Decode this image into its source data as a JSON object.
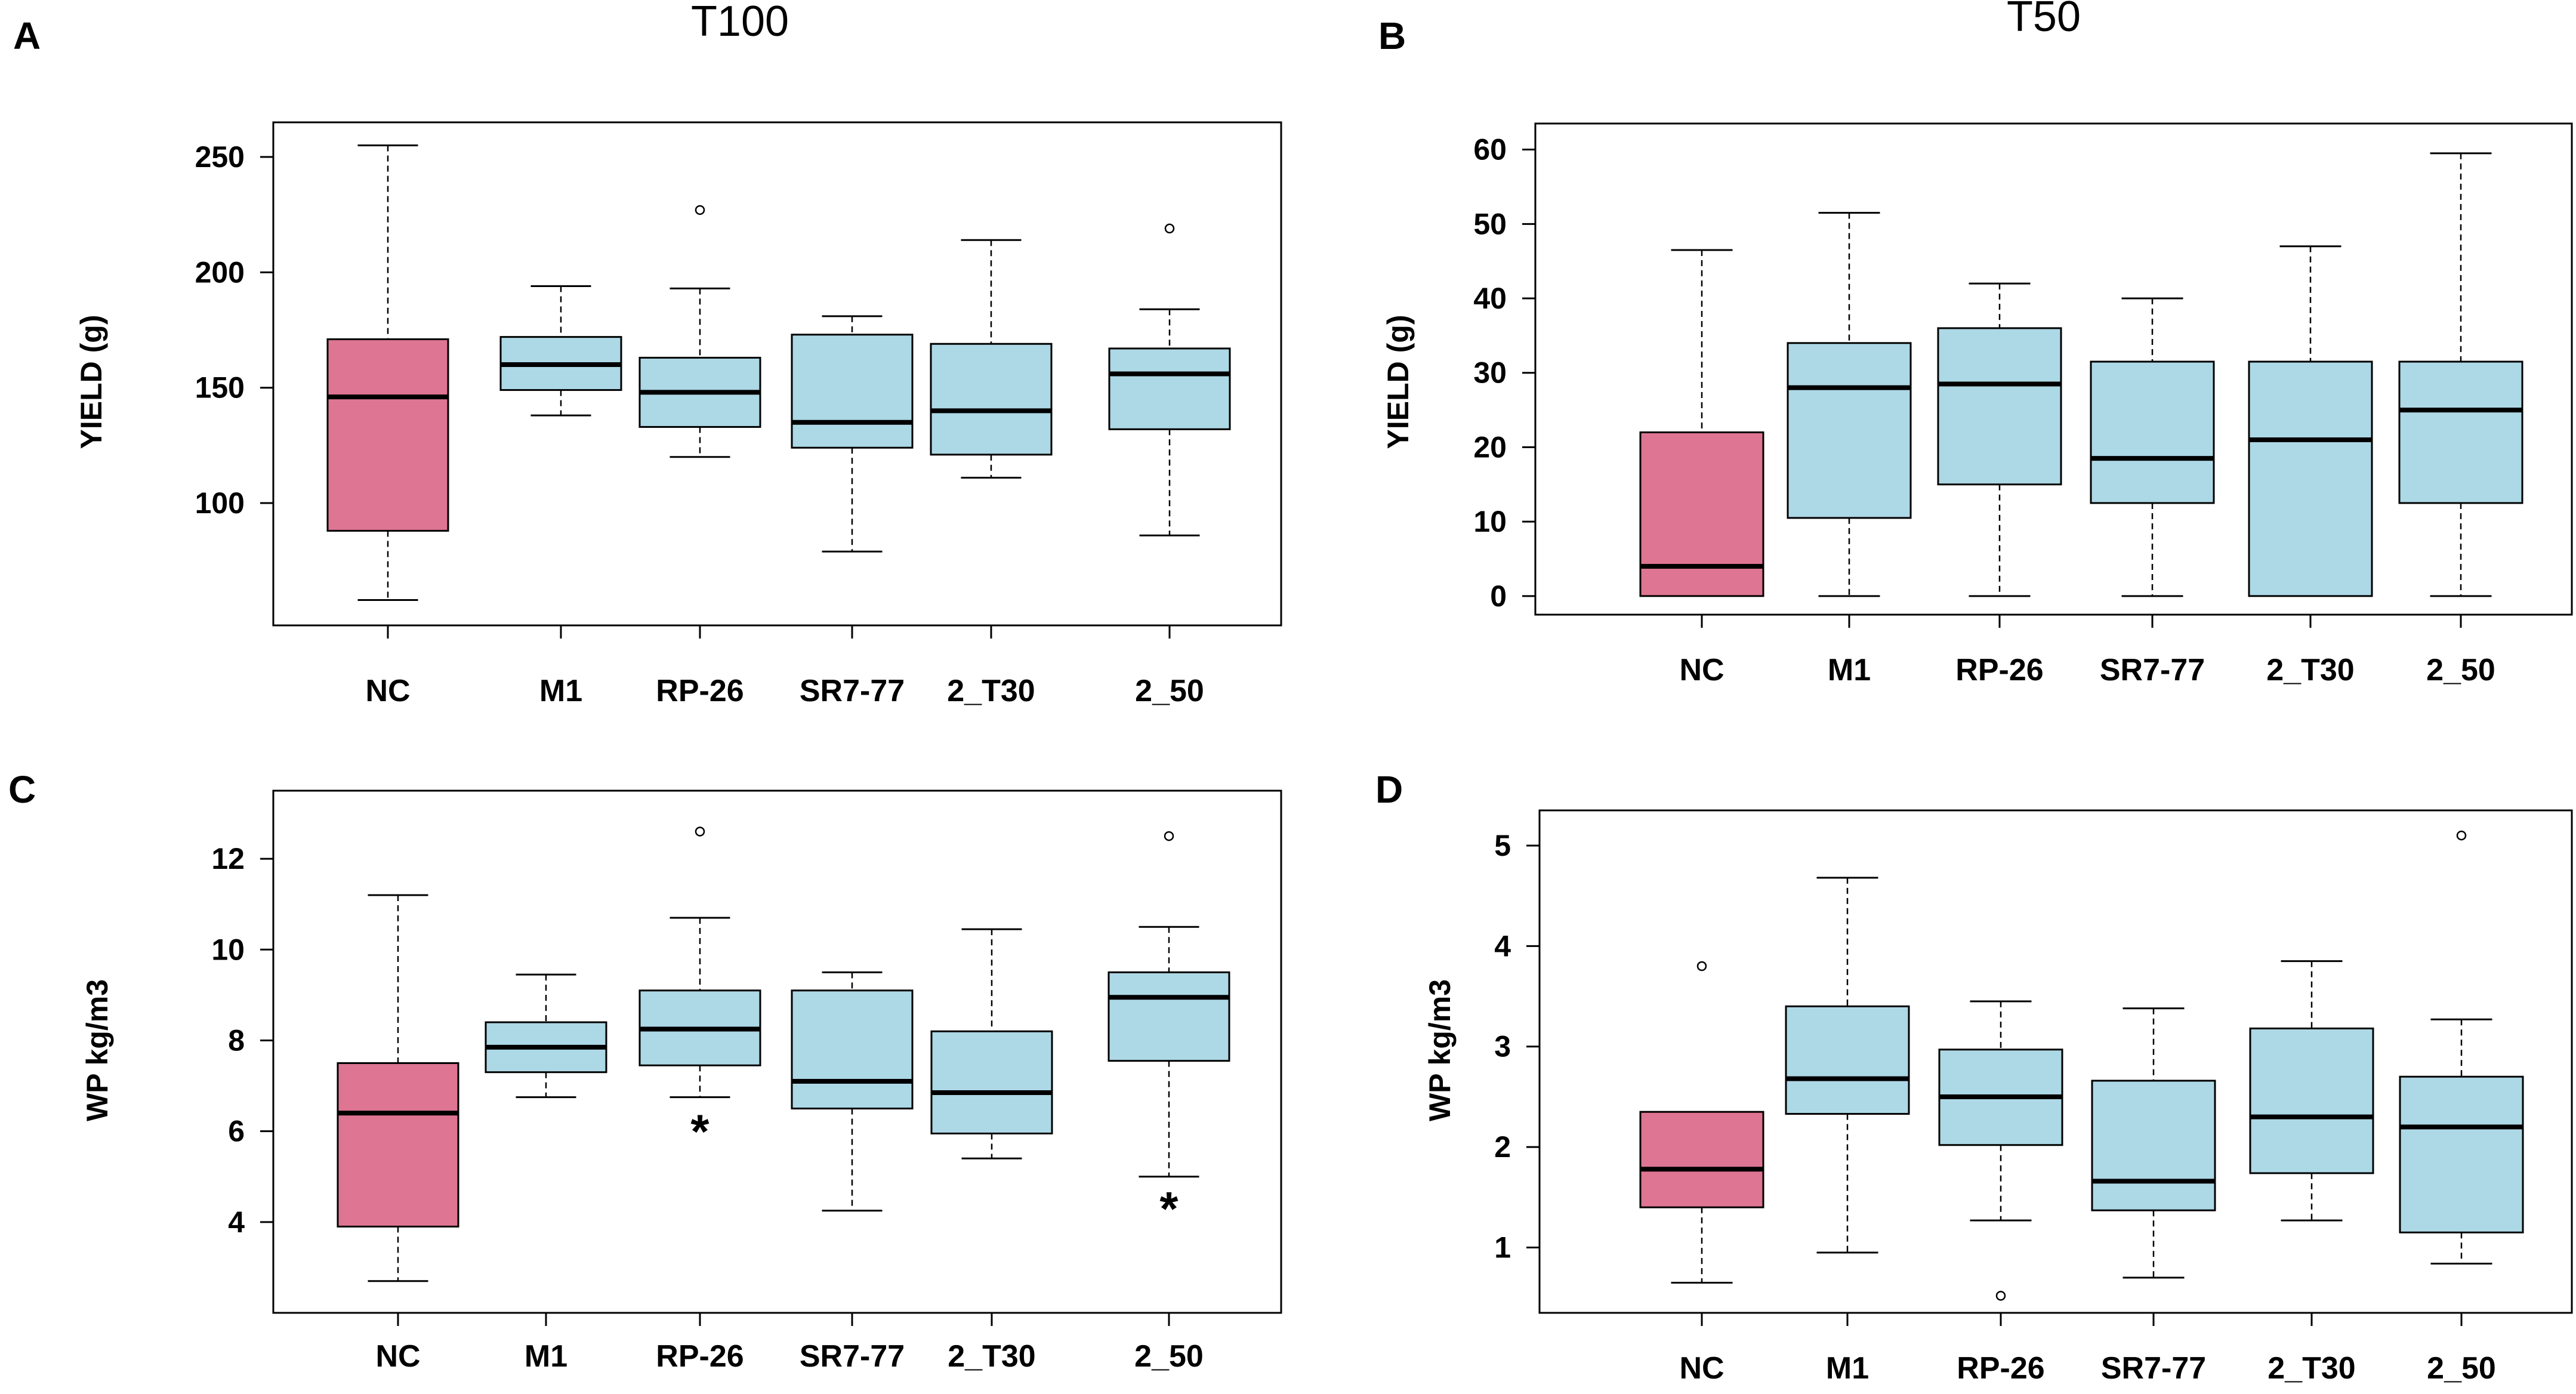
{
  "figure": {
    "column_titles": [
      "T100",
      "T50"
    ],
    "colors": {
      "control_fill": "#DE7593",
      "treatment_fill": "#ADD8E6",
      "line": "#000000"
    }
  },
  "chart_data": [
    {
      "panel": "A",
      "type": "boxplot",
      "title": "T100",
      "xlabel": "",
      "ylabel": "YIELD (g)",
      "ylim": [
        47,
        265
      ],
      "yticks": [
        100,
        150,
        200,
        250
      ],
      "categories": [
        "NC",
        "M1",
        "RP-26",
        "SR7-77",
        "2_T30",
        "2_50"
      ],
      "boxes": [
        {
          "category": "NC",
          "group": "control",
          "whisker_low": 58,
          "q1": 88,
          "median": 146,
          "q3": 171,
          "whisker_high": 255,
          "outliers": []
        },
        {
          "category": "M1",
          "group": "treatment",
          "whisker_low": 138,
          "q1": 149,
          "median": 160,
          "q3": 172,
          "whisker_high": 194,
          "outliers": []
        },
        {
          "category": "RP-26",
          "group": "treatment",
          "whisker_low": 120,
          "q1": 133,
          "median": 148,
          "q3": 163,
          "whisker_high": 193,
          "outliers": [
            227
          ]
        },
        {
          "category": "SR7-77",
          "group": "treatment",
          "whisker_low": 79,
          "q1": 124,
          "median": 135,
          "q3": 173,
          "whisker_high": 181,
          "outliers": []
        },
        {
          "category": "2_T30",
          "group": "treatment",
          "whisker_low": 111,
          "q1": 121,
          "median": 140,
          "q3": 169,
          "whisker_high": 214,
          "outliers": []
        },
        {
          "category": "2_50",
          "group": "treatment",
          "whisker_low": 86,
          "q1": 132,
          "median": 156,
          "q3": 167,
          "whisker_high": 184,
          "outliers": [
            219
          ]
        }
      ],
      "annotations": []
    },
    {
      "panel": "B",
      "type": "boxplot",
      "title": "T50",
      "xlabel": "",
      "ylabel": "YIELD (g)",
      "ylim": [
        -2.5,
        63.5
      ],
      "yticks": [
        0,
        10,
        20,
        30,
        40,
        50,
        60
      ],
      "categories": [
        "NC",
        "M1",
        "RP-26",
        "SR7-77",
        "2_T30",
        "2_50"
      ],
      "boxes": [
        {
          "category": "NC",
          "group": "control",
          "whisker_low": 0,
          "q1": 0,
          "median": 4,
          "q3": 22,
          "whisker_high": 46.5,
          "outliers": []
        },
        {
          "category": "M1",
          "group": "treatment",
          "whisker_low": 0,
          "q1": 10.5,
          "median": 28,
          "q3": 34,
          "whisker_high": 51.5,
          "outliers": []
        },
        {
          "category": "RP-26",
          "group": "treatment",
          "whisker_low": 0,
          "q1": 15,
          "median": 28.5,
          "q3": 36,
          "whisker_high": 42,
          "outliers": []
        },
        {
          "category": "SR7-77",
          "group": "treatment",
          "whisker_low": 0,
          "q1": 12.5,
          "median": 18.5,
          "q3": 31.5,
          "whisker_high": 40,
          "outliers": []
        },
        {
          "category": "2_T30",
          "group": "treatment",
          "whisker_low": 0,
          "q1": 0,
          "median": 21,
          "q3": 31.5,
          "whisker_high": 47,
          "outliers": []
        },
        {
          "category": "2_50",
          "group": "treatment",
          "whisker_low": 0,
          "q1": 12.5,
          "median": 25,
          "q3": 31.5,
          "whisker_high": 59.5,
          "outliers": []
        }
      ],
      "annotations": []
    },
    {
      "panel": "C",
      "type": "boxplot",
      "title": "",
      "xlabel": "",
      "ylabel": "WP kg/m3",
      "ylim": [
        2.0,
        13.5
      ],
      "yticks": [
        4,
        6,
        8,
        10,
        12
      ],
      "categories": [
        "NC",
        "M1",
        "RP-26",
        "SR7-77",
        "2_T30",
        "2_50"
      ],
      "boxes": [
        {
          "category": "NC",
          "group": "control",
          "whisker_low": 2.7,
          "q1": 3.9,
          "median": 6.4,
          "q3": 7.5,
          "whisker_high": 11.2,
          "outliers": []
        },
        {
          "category": "M1",
          "group": "treatment",
          "whisker_low": 6.75,
          "q1": 7.3,
          "median": 7.85,
          "q3": 8.4,
          "whisker_high": 9.45,
          "outliers": []
        },
        {
          "category": "RP-26",
          "group": "treatment",
          "whisker_low": 6.75,
          "q1": 7.45,
          "median": 8.25,
          "q3": 9.1,
          "whisker_high": 10.7,
          "outliers": [
            12.6
          ]
        },
        {
          "category": "SR7-77",
          "group": "treatment",
          "whisker_low": 4.25,
          "q1": 6.5,
          "median": 7.1,
          "q3": 9.1,
          "whisker_high": 9.5,
          "outliers": []
        },
        {
          "category": "2_T30",
          "group": "treatment",
          "whisker_low": 5.4,
          "q1": 5.95,
          "median": 6.85,
          "q3": 8.2,
          "whisker_high": 10.45,
          "outliers": []
        },
        {
          "category": "2_50",
          "group": "treatment",
          "whisker_low": 5.0,
          "q1": 7.55,
          "median": 8.95,
          "q3": 9.5,
          "whisker_high": 10.5,
          "outliers": [
            12.5
          ]
        }
      ],
      "annotations": [
        {
          "category": "RP-26",
          "text": "*",
          "y": 6.0
        },
        {
          "category": "2_50",
          "text": "*",
          "y": 4.3
        }
      ]
    },
    {
      "panel": "D",
      "type": "boxplot",
      "title": "",
      "xlabel": "",
      "ylabel": "WP kg/m3",
      "ylim": [
        0.35,
        5.35
      ],
      "yticks": [
        1,
        2,
        3,
        4,
        5
      ],
      "categories": [
        "NC",
        "M1",
        "RP-26",
        "SR7-77",
        "2_T30",
        "2_50"
      ],
      "boxes": [
        {
          "category": "NC",
          "group": "control",
          "whisker_low": 0.65,
          "q1": 1.4,
          "median": 1.78,
          "q3": 2.35,
          "whisker_high": 2.35,
          "outliers": [
            3.8
          ]
        },
        {
          "category": "M1",
          "group": "treatment",
          "whisker_low": 0.95,
          "q1": 2.33,
          "median": 2.68,
          "q3": 3.4,
          "whisker_high": 4.68,
          "outliers": []
        },
        {
          "category": "RP-26",
          "group": "treatment",
          "whisker_low": 1.27,
          "q1": 2.02,
          "median": 2.5,
          "q3": 2.97,
          "whisker_high": 3.45,
          "outliers": [
            0.52
          ]
        },
        {
          "category": "SR7-77",
          "group": "treatment",
          "whisker_low": 0.7,
          "q1": 1.37,
          "median": 1.66,
          "q3": 2.66,
          "whisker_high": 3.38,
          "outliers": []
        },
        {
          "category": "2_T30",
          "group": "treatment",
          "whisker_low": 1.27,
          "q1": 1.74,
          "median": 2.3,
          "q3": 3.18,
          "whisker_high": 3.85,
          "outliers": []
        },
        {
          "category": "2_50",
          "group": "treatment",
          "whisker_low": 0.84,
          "q1": 1.15,
          "median": 2.2,
          "q3": 2.7,
          "whisker_high": 3.27,
          "outliers": [
            5.1
          ]
        }
      ],
      "annotations": []
    }
  ]
}
